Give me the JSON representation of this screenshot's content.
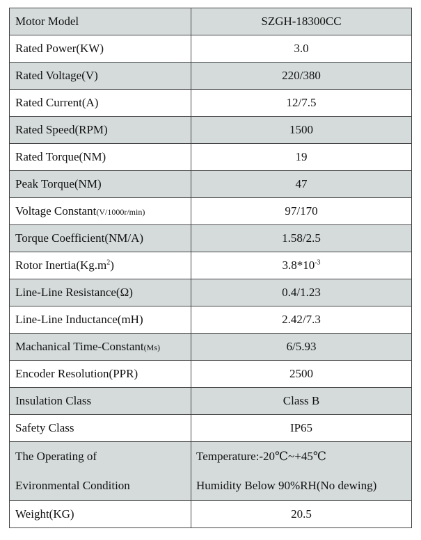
{
  "rows": [
    {
      "label": "Motor Model",
      "value": "SZGH-18300CC"
    },
    {
      "label": "Rated Power(KW)",
      "value": "3.0"
    },
    {
      "label": "Rated Voltage(V)",
      "value": "220/380"
    },
    {
      "label": "Rated Current(A)",
      "value": "12/7.5"
    },
    {
      "label": "Rated Speed(RPM)",
      "value": "1500"
    },
    {
      "label": "Rated Torque(NM)",
      "value": "19"
    },
    {
      "label": "Peak Torque(NM)",
      "value": "47"
    },
    {
      "label": "Voltage Constant",
      "label_unit": "(V/1000r/min)",
      "value": "97/170"
    },
    {
      "label": "Torque Coefficient(NM/A)",
      "value": "1.58/2.5"
    },
    {
      "label": "Rotor Inertia(Kg.m",
      "label_sup": "2",
      "label_end": ")",
      "value": "3.8*10",
      "value_sup": "-3"
    },
    {
      "label": "Line-Line Resistance(Ω)",
      "value": "0.4/1.23"
    },
    {
      "label": "Line-Line Inductance(mH)",
      "value": "2.42/7.3"
    },
    {
      "label": "Machanical Time-Constant",
      "label_unit": "(Ms)",
      "value": "6/5.93"
    },
    {
      "label": "Encoder Resolution(PPR)",
      "value": "2500"
    },
    {
      "label": "Insulation Class",
      "value": "Class B"
    },
    {
      "label": "Safety Class",
      "value": "IP65"
    }
  ],
  "environment": {
    "label_line1": "The Operating of",
    "label_line2": "Evironmental Condition",
    "value_line1": "Temperature:-20℃~+45℃",
    "value_line2": "Humidity Below 90%RH(No dewing)"
  },
  "weight": {
    "label": "Weight(KG)",
    "value": "20.5"
  },
  "colors": {
    "shaded_row": "#d5dbdb",
    "border": "#444444"
  }
}
